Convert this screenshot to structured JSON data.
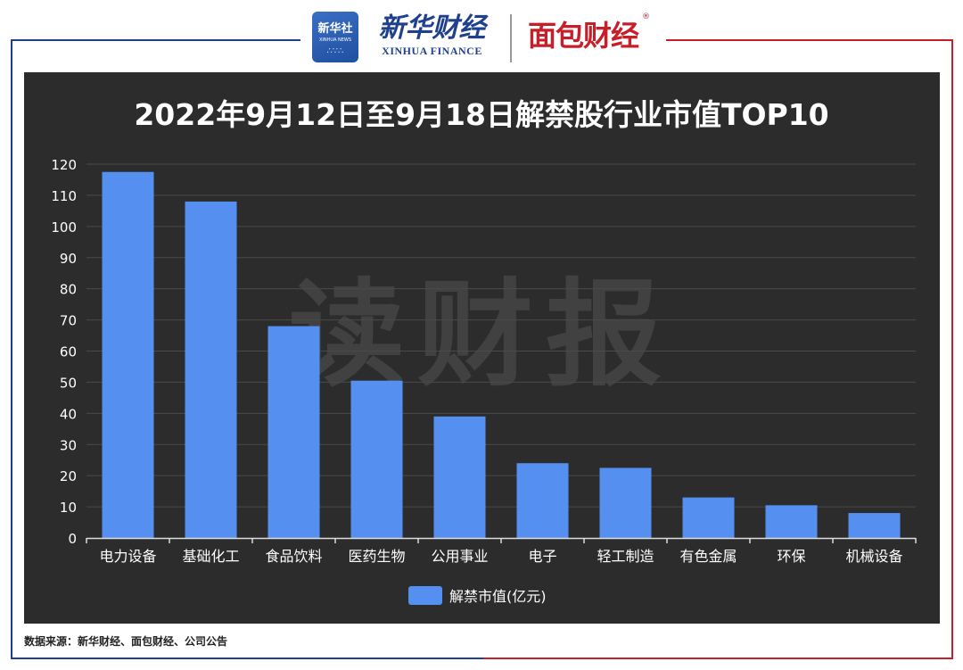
{
  "header": {
    "badge_line1": "新华社",
    "badge_line2": "XINHUA NEWS",
    "brand_cn": "新华财经",
    "brand_en": "XINHUA FINANCE",
    "partner_brand": "面包财经",
    "partner_reg_mark": "®"
  },
  "watermark": "读财报",
  "chart_data": {
    "type": "bar",
    "title": "2022年9月12日至9月18日解禁股行业市值TOP10",
    "categories": [
      "电力设备",
      "基础化工",
      "食品饮料",
      "医药生物",
      "公用事业",
      "电子",
      "轻工制造",
      "有色金属",
      "环保",
      "机械设备"
    ],
    "series": [
      {
        "name": "解禁市值(亿元)",
        "values": [
          117.5,
          108,
          68,
          50.5,
          39,
          24,
          22.5,
          13,
          10.5,
          8
        ],
        "color": "#5590f0"
      }
    ],
    "ylim": [
      0,
      120
    ],
    "yticks": [
      0,
      10,
      20,
      30,
      40,
      50,
      60,
      70,
      80,
      90,
      100,
      110,
      120
    ],
    "grid": true,
    "legend": "bottom-center"
  },
  "footer": {
    "source": "数据来源：新华财经、面包财经、公司公告"
  }
}
